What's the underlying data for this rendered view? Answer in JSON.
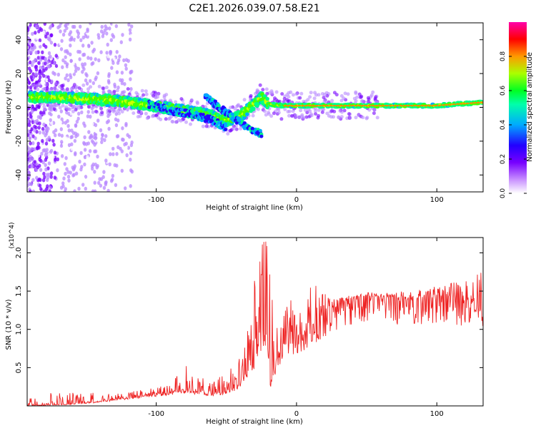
{
  "title": "C2E1.2026.039.07.58.E21",
  "colors": {
    "background": "#ffffff",
    "snr_line": "#ee2222",
    "axis": "#000000",
    "colormap": [
      "#ffffff",
      "#8800ff",
      "#2200ff",
      "#00ccff",
      "#00ff44",
      "#ccff00",
      "#ff8800",
      "#ff0000",
      "#ff00aa"
    ]
  },
  "chart_data": [
    {
      "type": "heatmap",
      "name": "spectrogram",
      "xlabel": "Height of straight line (km)",
      "ylabel": "Frequency (Hz)",
      "xlim": [
        -192,
        133
      ],
      "ylim": [
        -50,
        50
      ],
      "xticks": [
        -100,
        0,
        100
      ],
      "xticklabels": [
        "-100",
        "0",
        "100"
      ],
      "yticks": [
        -40,
        -20,
        0,
        20,
        40
      ],
      "yticklabels": [
        "-40",
        "-20",
        "0",
        "20",
        "40"
      ],
      "colorbar": {
        "label": "Normalized spectral amplitude",
        "range": [
          0,
          1
        ],
        "ticks": [
          0.0,
          0.2,
          0.4,
          0.6,
          0.8
        ],
        "ticklabels": [
          "0.0",
          "0.2",
          "0.4",
          "0.6",
          "0.8"
        ]
      },
      "main_band": [
        [
          -188,
          6
        ],
        [
          -170,
          6
        ],
        [
          -150,
          5
        ],
        [
          -130,
          4
        ],
        [
          -110,
          2
        ],
        [
          -95,
          0
        ],
        [
          -80,
          -2
        ],
        [
          -65,
          -4
        ],
        [
          -50,
          -8
        ],
        [
          -40,
          -5
        ],
        [
          -30,
          2
        ],
        [
          -25,
          6
        ],
        [
          -20,
          2
        ],
        [
          -10,
          1
        ],
        [
          0,
          1
        ],
        [
          20,
          1
        ],
        [
          50,
          1
        ],
        [
          80,
          1
        ],
        [
          100,
          1
        ],
        [
          115,
          2
        ],
        [
          133,
          3
        ]
      ],
      "branches": [
        {
          "name": "lower_branch",
          "points": [
            [
              -105,
              2
            ],
            [
              -90,
              -2
            ],
            [
              -75,
              -4
            ],
            [
              -62,
              -7
            ],
            [
              -50,
              -12
            ]
          ]
        },
        {
          "name": "hook_branch",
          "points": [
            [
              -65,
              6
            ],
            [
              -55,
              0
            ],
            [
              -45,
              -6
            ],
            [
              -35,
              -12
            ],
            [
              -25,
              -16
            ]
          ]
        }
      ]
    },
    {
      "type": "line",
      "name": "snr",
      "xlabel": "Height of straight line (km)",
      "ylabel": "SNR (10 * v/v)",
      "y_multiplier": "(x10^4)",
      "xlim": [
        -192,
        133
      ],
      "ylim": [
        0,
        2.2
      ],
      "xticks": [
        -100,
        0,
        100
      ],
      "xticklabels": [
        "-100",
        "0",
        "100"
      ],
      "yticks": [
        0.5,
        1.0,
        1.5,
        2.0
      ],
      "yticklabels": [
        "0.5",
        "1.0",
        "1.5",
        "2.0"
      ],
      "series": [
        {
          "name": "SNR",
          "color": "#ee2222",
          "x": [
            -192,
            -180,
            -165,
            -150,
            -140,
            -130,
            -120,
            -110,
            -100,
            -90,
            -80,
            -70,
            -60,
            -50,
            -42,
            -36,
            -30,
            -26,
            -23,
            -21,
            -19,
            -15,
            -10,
            -5,
            0,
            5,
            10,
            15,
            20,
            30,
            40,
            50,
            60,
            70,
            80,
            90,
            100,
            110,
            120,
            128,
            133
          ],
          "values": [
            0.01,
            0.01,
            0.02,
            0.04,
            0.06,
            0.09,
            0.11,
            0.14,
            0.16,
            0.19,
            0.22,
            0.19,
            0.16,
            0.2,
            0.28,
            0.45,
            0.6,
            0.8,
            1.0,
            0.9,
            0.3,
            0.55,
            0.8,
            0.85,
            0.85,
            0.95,
            1.0,
            1.05,
            1.2,
            1.35,
            1.42,
            1.44,
            1.42,
            1.42,
            1.38,
            1.42,
            1.45,
            1.42,
            1.38,
            1.4,
            1.25
          ],
          "envelope": [
            [
              -120,
              0.18
            ],
            [
              -90,
              0.28
            ],
            [
              -80,
              0.55
            ],
            [
              -60,
              0.3
            ],
            [
              -45,
              0.55
            ],
            [
              -35,
              1.2
            ],
            [
              -24,
              2.15
            ],
            [
              -21,
              2.2
            ],
            [
              -15,
              1.0
            ],
            [
              -10,
              1.35
            ],
            [
              -5,
              1.6
            ],
            [
              5,
              1.1
            ],
            [
              10,
              1.7
            ],
            [
              15,
              1.55
            ],
            [
              25,
              1.4
            ],
            [
              50,
              1.48
            ],
            [
              80,
              1.5
            ],
            [
              100,
              1.6
            ],
            [
              120,
              1.62
            ],
            [
              130,
              1.8
            ]
          ]
        }
      ]
    }
  ]
}
